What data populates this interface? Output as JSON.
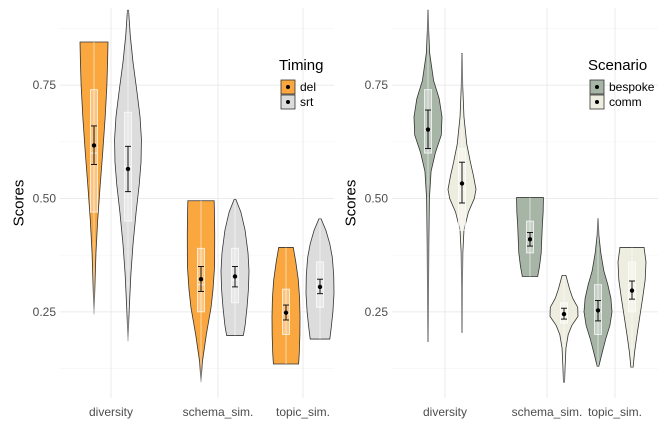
{
  "chart_data": [
    {
      "type": "violin",
      "ylabel": "Scores",
      "categories": [
        "diversity",
        "schema_sim.",
        "topic_sim."
      ],
      "y_ticks": [
        "0.25",
        "0.50",
        "0.75"
      ],
      "ylim": [
        0.06,
        0.92
      ],
      "legend": {
        "title": "Timing",
        "position": "top-right"
      },
      "series": [
        {
          "name": "del",
          "color": "#F9A73E",
          "groups": [
            {
              "min": 0.245,
              "max": 0.845,
              "q1": 0.47,
              "median": 0.6,
              "q3": 0.74,
              "mean": 0.617,
              "ci": [
                0.575,
                0.66
              ],
              "shape": [
                [
                  0.245,
                  0.0
                ],
                [
                  0.3,
                  0.06
                ],
                [
                  0.38,
                  0.14
                ],
                [
                  0.45,
                  0.26
                ],
                [
                  0.52,
                  0.42
                ],
                [
                  0.6,
                  0.62
                ],
                [
                  0.68,
                  0.8
                ],
                [
                  0.75,
                  0.92
                ],
                [
                  0.8,
                  0.97
                ],
                [
                  0.845,
                  1.0
                ]
              ]
            },
            {
              "min": 0.095,
              "max": 0.495,
              "q1": 0.25,
              "median": 0.31,
              "q3": 0.39,
              "mean": 0.322,
              "ci": [
                0.295,
                0.35
              ],
              "shape": [
                [
                  0.095,
                  0.0
                ],
                [
                  0.14,
                  0.1
                ],
                [
                  0.2,
                  0.38
                ],
                [
                  0.26,
                  0.72
                ],
                [
                  0.3,
                  0.86
                ],
                [
                  0.35,
                  0.97
                ],
                [
                  0.42,
                  0.98
                ],
                [
                  0.47,
                  0.96
                ],
                [
                  0.495,
                  0.94
                ]
              ]
            },
            {
              "min": 0.135,
              "max": 0.392,
              "q1": 0.2,
              "median": 0.245,
              "q3": 0.3,
              "mean": 0.248,
              "ci": [
                0.232,
                0.265
              ],
              "shape": [
                [
                  0.135,
                  0.9
                ],
                [
                  0.16,
                  0.95
                ],
                [
                  0.2,
                  0.99
                ],
                [
                  0.24,
                  1.0
                ],
                [
                  0.28,
                  0.97
                ],
                [
                  0.32,
                  0.88
                ],
                [
                  0.36,
                  0.7
                ],
                [
                  0.392,
                  0.52
                ]
              ]
            }
          ]
        },
        {
          "name": "srt",
          "color": "#DCDCDC",
          "groups": [
            {
              "min": 0.185,
              "max": 0.915,
              "q1": 0.45,
              "median": 0.57,
              "q3": 0.69,
              "mean": 0.565,
              "ci": [
                0.515,
                0.615
              ],
              "shape": [
                [
                  0.185,
                  0.0
                ],
                [
                  0.25,
                  0.08
                ],
                [
                  0.33,
                  0.2
                ],
                [
                  0.4,
                  0.36
                ],
                [
                  0.47,
                  0.58
                ],
                [
                  0.53,
                  0.8
                ],
                [
                  0.58,
                  0.93
                ],
                [
                  0.63,
                  0.96
                ],
                [
                  0.68,
                  0.86
                ],
                [
                  0.74,
                  0.62
                ],
                [
                  0.8,
                  0.36
                ],
                [
                  0.86,
                  0.16
                ],
                [
                  0.915,
                  0.04
                ]
              ]
            },
            {
              "min": 0.198,
              "max": 0.498,
              "q1": 0.27,
              "median": 0.32,
              "q3": 0.39,
              "mean": 0.328,
              "ci": [
                0.305,
                0.35
              ],
              "shape": [
                [
                  0.198,
                  0.6
                ],
                [
                  0.22,
                  0.72
                ],
                [
                  0.26,
                  0.86
                ],
                [
                  0.3,
                  0.96
                ],
                [
                  0.34,
                  1.0
                ],
                [
                  0.38,
                  0.93
                ],
                [
                  0.43,
                  0.72
                ],
                [
                  0.47,
                  0.42
                ],
                [
                  0.498,
                  0.06
                ]
              ]
            },
            {
              "min": 0.19,
              "max": 0.455,
              "q1": 0.26,
              "median": 0.3,
              "q3": 0.36,
              "mean": 0.305,
              "ci": [
                0.29,
                0.322
              ],
              "shape": [
                [
                  0.19,
                  0.7
                ],
                [
                  0.22,
                  0.82
                ],
                [
                  0.25,
                  0.92
                ],
                [
                  0.29,
                  1.0
                ],
                [
                  0.33,
                  0.98
                ],
                [
                  0.37,
                  0.88
                ],
                [
                  0.4,
                  0.7
                ],
                [
                  0.43,
                  0.42
                ],
                [
                  0.455,
                  0.08
                ]
              ]
            }
          ]
        }
      ]
    },
    {
      "type": "violin",
      "ylabel": "Scores",
      "categories": [
        "diversity",
        "schema_sim.",
        "topic_sim."
      ],
      "y_ticks": [
        "0.25",
        "0.50",
        "0.75"
      ],
      "ylim": [
        0.06,
        0.92
      ],
      "legend": {
        "title": "Scenario",
        "position": "top-right"
      },
      "series": [
        {
          "name": "bespoke",
          "color": "#A7B5A6",
          "groups": [
            {
              "min": 0.185,
              "max": 0.915,
              "q1": 0.6,
              "median": 0.65,
              "q3": 0.74,
              "mean": 0.652,
              "ci": [
                0.61,
                0.695
              ],
              "shape": [
                [
                  0.185,
                  0.02
                ],
                [
                  0.3,
                  0.04
                ],
                [
                  0.4,
                  0.06
                ],
                [
                  0.5,
                  0.1
                ],
                [
                  0.56,
                  0.22
                ],
                [
                  0.6,
                  0.52
                ],
                [
                  0.64,
                  0.95
                ],
                [
                  0.68,
                  1.0
                ],
                [
                  0.72,
                  0.8
                ],
                [
                  0.76,
                  0.4
                ],
                [
                  0.82,
                  0.12
                ],
                [
                  0.87,
                  0.05
                ],
                [
                  0.915,
                  0.02
                ]
              ]
            },
            {
              "min": 0.328,
              "max": 0.502,
              "q1": 0.38,
              "median": 0.41,
              "q3": 0.45,
              "mean": 0.41,
              "ci": [
                0.395,
                0.425
              ],
              "shape": [
                [
                  0.328,
                  0.55
                ],
                [
                  0.35,
                  0.68
                ],
                [
                  0.38,
                  0.8
                ],
                [
                  0.41,
                  0.84
                ],
                [
                  0.44,
                  0.88
                ],
                [
                  0.47,
                  0.94
                ],
                [
                  0.502,
                  0.96
                ]
              ]
            },
            {
              "min": 0.13,
              "max": 0.455,
              "q1": 0.2,
              "median": 0.25,
              "q3": 0.31,
              "mean": 0.253,
              "ci": [
                0.23,
                0.275
              ],
              "shape": [
                [
                  0.13,
                  0.06
                ],
                [
                  0.16,
                  0.3
                ],
                [
                  0.19,
                  0.55
                ],
                [
                  0.22,
                  0.85
                ],
                [
                  0.25,
                  1.0
                ],
                [
                  0.28,
                  0.92
                ],
                [
                  0.31,
                  0.7
                ],
                [
                  0.34,
                  0.42
                ],
                [
                  0.38,
                  0.2
                ],
                [
                  0.42,
                  0.06
                ],
                [
                  0.455,
                  0.02
                ]
              ]
            }
          ]
        },
        {
          "name": "comm",
          "color": "#EEEEE0",
          "groups": [
            {
              "min": 0.205,
              "max": 0.82,
              "q1": 0.43,
              "median": 0.52,
              "q3": 0.61,
              "mean": 0.533,
              "ci": [
                0.49,
                0.58
              ],
              "shape": [
                [
                  0.205,
                  0.02
                ],
                [
                  0.3,
                  0.03
                ],
                [
                  0.38,
                  0.06
                ],
                [
                  0.43,
                  0.14
                ],
                [
                  0.47,
                  0.46
                ],
                [
                  0.5,
                  0.88
                ],
                [
                  0.52,
                  1.0
                ],
                [
                  0.55,
                  0.82
                ],
                [
                  0.58,
                  0.6
                ],
                [
                  0.62,
                  0.34
                ],
                [
                  0.68,
                  0.14
                ],
                [
                  0.75,
                  0.05
                ],
                [
                  0.82,
                  0.02
                ]
              ]
            },
            {
              "min": 0.095,
              "max": 0.33,
              "q1": 0.225,
              "median": 0.245,
              "q3": 0.27,
              "mean": 0.245,
              "ci": [
                0.234,
                0.258
              ],
              "shape": [
                [
                  0.095,
                  0.04
                ],
                [
                  0.13,
                  0.08
                ],
                [
                  0.17,
                  0.14
                ],
                [
                  0.2,
                  0.3
                ],
                [
                  0.22,
                  0.56
                ],
                [
                  0.24,
                  1.0
                ],
                [
                  0.26,
                  0.98
                ],
                [
                  0.28,
                  0.62
                ],
                [
                  0.3,
                  0.4
                ],
                [
                  0.33,
                  0.14
                ]
              ]
            },
            {
              "min": 0.128,
              "max": 0.392,
              "q1": 0.25,
              "median": 0.3,
              "q3": 0.36,
              "mean": 0.297,
              "ci": [
                0.278,
                0.318
              ],
              "shape": [
                [
                  0.128,
                  0.08
                ],
                [
                  0.16,
                  0.18
                ],
                [
                  0.2,
                  0.36
                ],
                [
                  0.24,
                  0.56
                ],
                [
                  0.28,
                  0.76
                ],
                [
                  0.32,
                  0.94
                ],
                [
                  0.36,
                  1.0
                ],
                [
                  0.392,
                  0.86
                ]
              ]
            }
          ]
        }
      ]
    }
  ]
}
